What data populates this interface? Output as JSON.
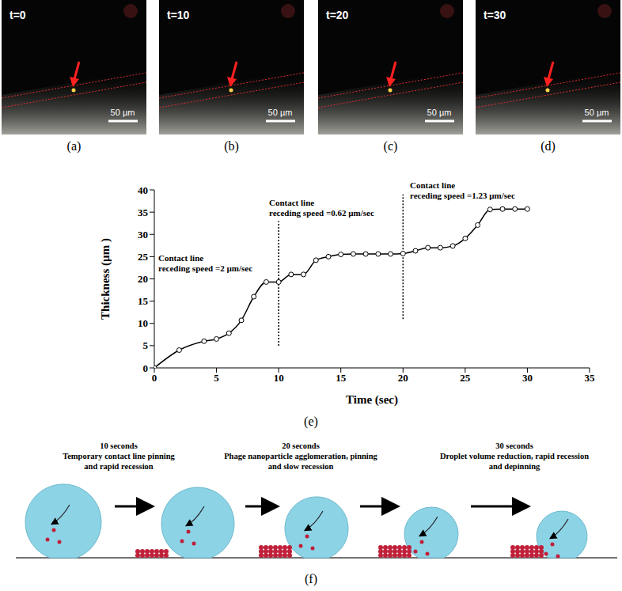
{
  "panels": [
    {
      "label": "(a)",
      "time": "t=0",
      "scale_bar": "50 µm"
    },
    {
      "label": "(b)",
      "time": "t=10",
      "scale_bar": "50 µm"
    },
    {
      "label": "(c)",
      "time": "t=20",
      "scale_bar": "50 µm"
    },
    {
      "label": "(d)",
      "time": "t=30",
      "scale_bar": "50 µm"
    }
  ],
  "chart_data": {
    "type": "line",
    "label": "(e)",
    "x_label": "Time (sec)",
    "y_label": "Thickness (µm )",
    "x": [
      0,
      2,
      4,
      5,
      6,
      7,
      8,
      9,
      10,
      11,
      12,
      13,
      14,
      15,
      16,
      17,
      18,
      19,
      20,
      21,
      22,
      23,
      24,
      25,
      26,
      27,
      28,
      29,
      30
    ],
    "values": [
      0,
      4,
      6,
      6.5,
      7.8,
      10.7,
      16,
      19.3,
      19.3,
      21,
      21,
      24.2,
      25,
      25.5,
      25.6,
      25.6,
      25.6,
      25.6,
      25.7,
      26.3,
      27,
      27,
      27.4,
      29.1,
      32.1,
      35.6,
      35.7,
      35.7,
      35.7
    ],
    "color": "#000000",
    "marker": "circle",
    "line_style": "solid",
    "grid": false,
    "xlim": [
      0,
      35
    ],
    "xticks": [
      0,
      5,
      10,
      15,
      20,
      25,
      30,
      35
    ],
    "ylim": [
      0,
      40
    ],
    "yticks": [
      0,
      5,
      10,
      15,
      20,
      25,
      30,
      35,
      40
    ],
    "annotations": [
      {
        "lines": [
          "Contact line",
          "receding speed =2 µm/sec"
        ]
      },
      {
        "x": 10,
        "y_range": [
          5,
          33
        ],
        "lines": [
          "Contact line",
          "receding speed =0.62 µm/sec"
        ]
      },
      {
        "x": 20,
        "y_range": [
          11,
          39
        ],
        "lines": [
          "Contact line",
          "receding speed =1.23 µm/sec"
        ]
      }
    ]
  },
  "diagram": {
    "label": "(f)",
    "stages": [
      {
        "time": "10 seconds",
        "lines": [
          "Temporary contact line pinning",
          "and rapid recession"
        ]
      },
      {
        "time": "20 seconds",
        "lines": [
          "Phage nanoparticle agglomeration, pinning",
          "and slow recession"
        ]
      },
      {
        "time": "30 seconds",
        "lines": [
          "Droplet volume reduction, rapid recession",
          "and depinning"
        ]
      }
    ]
  }
}
